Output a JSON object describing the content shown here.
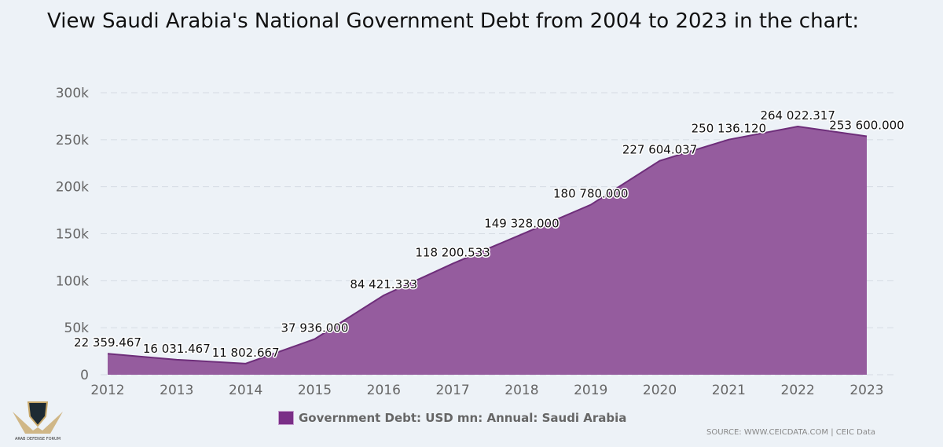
{
  "title": "View Saudi Arabia's National Government Debt from 2004 to 2023 in the chart:",
  "chart_data": {
    "type": "area",
    "title": "View Saudi Arabia's National Government Debt from 2004 to 2023 in the chart:",
    "x": [
      "2012",
      "2013",
      "2014",
      "2015",
      "2016",
      "2017",
      "2018",
      "2019",
      "2020",
      "2021",
      "2022",
      "2023"
    ],
    "series": [
      {
        "name": "Government Debt: USD mn: Annual: Saudi Arabia",
        "values": [
          22359.467,
          16031.467,
          11802.667,
          37936.0,
          84421.333,
          118200.533,
          149328.0,
          180780.0,
          227604.037,
          250136.12,
          264022.317,
          253600.0
        ],
        "labels": [
          "22 359.467",
          "16 031.467",
          "11 802.667",
          "37 936.000",
          "84 421.333",
          "118 200.533",
          "149 328.000",
          "180 780.000",
          "227 604.037",
          "250 136.120",
          "264 022.317",
          "253 600.000"
        ]
      }
    ],
    "yticks": [
      0,
      50000,
      100000,
      150000,
      200000,
      250000,
      300000
    ],
    "ytick_labels": [
      "0",
      "50k",
      "100k",
      "150k",
      "200k",
      "250k",
      "300k"
    ],
    "ylim": [
      0,
      300000
    ],
    "grid": true,
    "legend": "bottom-center",
    "colors": {
      "fill": "#955c9e",
      "line": "#6e2e7a"
    }
  },
  "legend_label": "Government Debt: USD mn: Annual: Saudi Arabia",
  "source": "SOURCE: WWW.CEICDATA.COM | CEIC Data",
  "logo_text": "ARAB DEFENSE FORUM"
}
